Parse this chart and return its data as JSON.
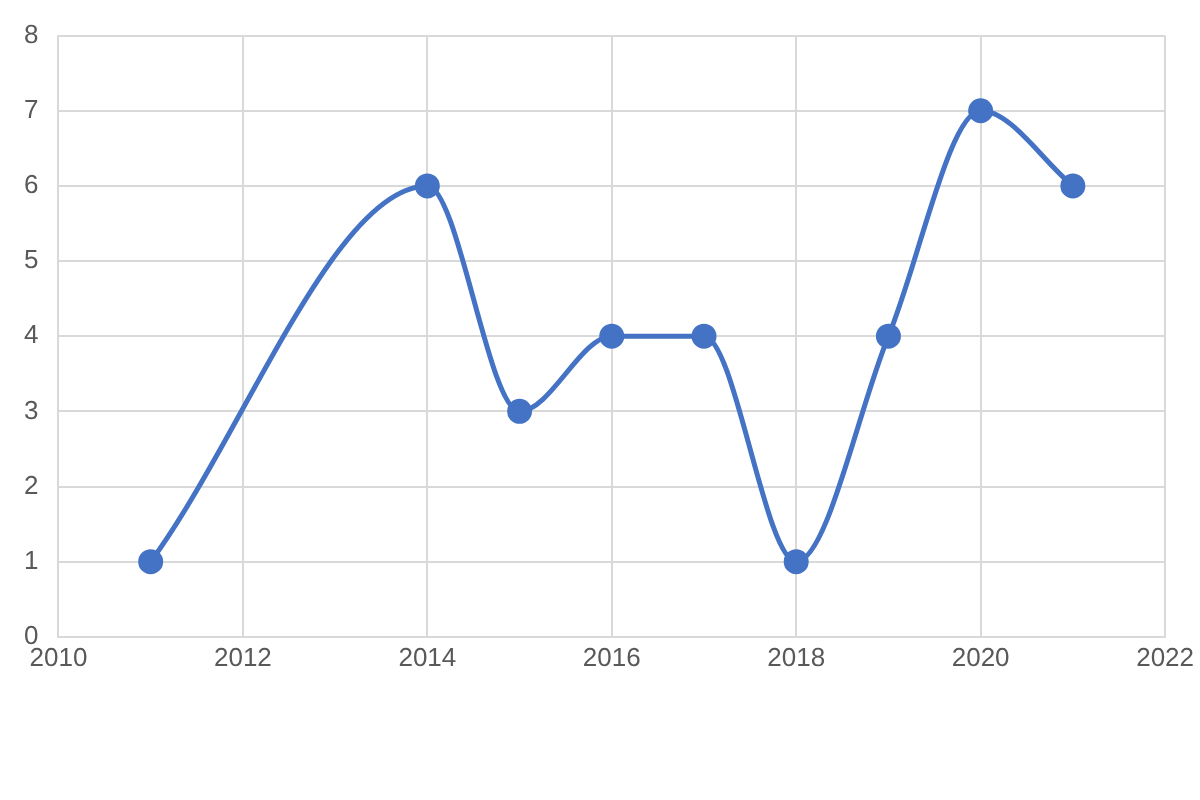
{
  "chart_data": {
    "type": "line",
    "x": [
      2011,
      2014,
      2015,
      2016,
      2017,
      2018,
      2019,
      2020,
      2021
    ],
    "series": [
      {
        "color": "#4472c4",
        "values": [
          1,
          6,
          3,
          4,
          4,
          1,
          4,
          7,
          6
        ]
      }
    ],
    "xlim": [
      2010,
      2022
    ],
    "xticks": [
      2010,
      2012,
      2014,
      2016,
      2018,
      2020,
      2022
    ],
    "ylim": [
      0,
      8
    ],
    "yticks": [
      0,
      1,
      2,
      3,
      4,
      5,
      6,
      7,
      8
    ],
    "grid": true,
    "legend": false,
    "marker": "circle",
    "line_style": "solid"
  }
}
